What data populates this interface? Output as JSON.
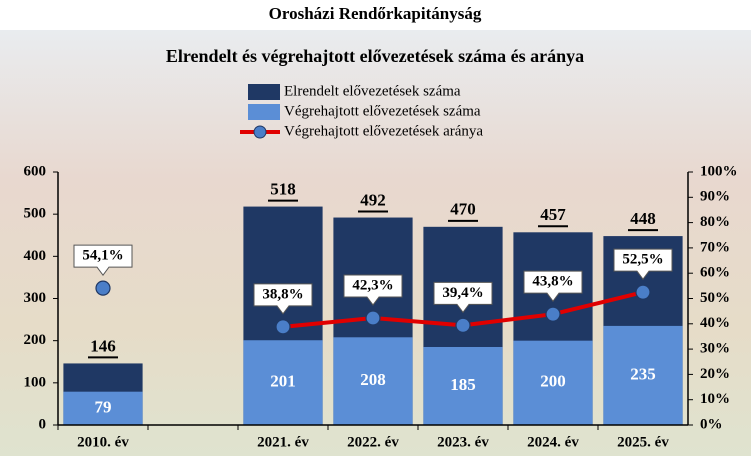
{
  "chart_data": {
    "type": "bar",
    "page_title": "Orosházi Rendőrkapitányság",
    "title": "Elrendelt és végrehajtott elővezetések száma és aránya",
    "categories": [
      "2010. év",
      null,
      "2021. év",
      "2022. év",
      "2023. év",
      "2024. év",
      "2025. év"
    ],
    "series": [
      {
        "name": "Elrendelt elővezetések száma",
        "color": "#1f3864",
        "values": [
          146,
          null,
          518,
          492,
          470,
          457,
          448
        ]
      },
      {
        "name": "Végrehajtott elővezetések száma",
        "color": "#5b8ed6",
        "values": [
          79,
          null,
          201,
          208,
          185,
          200,
          235
        ]
      },
      {
        "name": "Végrehajtott elővezetések aránya",
        "color": "#e00000",
        "marker_color": "#4a7ec8",
        "type": "line",
        "axis": "y2",
        "values": [
          54.1,
          null,
          38.8,
          42.3,
          39.4,
          43.8,
          52.5
        ],
        "value_labels": [
          "54,1%",
          null,
          "38,8%",
          "42,3%",
          "39,4%",
          "43,8%",
          "52,5%"
        ]
      }
    ],
    "ylim": [
      0,
      600
    ],
    "yticks": [
      0,
      100,
      200,
      300,
      400,
      500,
      600
    ],
    "y2lim": [
      0,
      100
    ],
    "y2ticks": [
      {
        "value": 0,
        "label": "0%"
      },
      {
        "value": 10,
        "label": "10%"
      },
      {
        "value": 20,
        "label": "20%"
      },
      {
        "value": 30,
        "label": "30%"
      },
      {
        "value": 40,
        "label": "40%"
      },
      {
        "value": 50,
        "label": "50%"
      },
      {
        "value": 60,
        "label": "60%"
      },
      {
        "value": 70,
        "label": "70%"
      },
      {
        "value": 80,
        "label": "80%"
      },
      {
        "value": 90,
        "label": "90%"
      },
      {
        "value": 100,
        "label": "100%"
      }
    ]
  }
}
